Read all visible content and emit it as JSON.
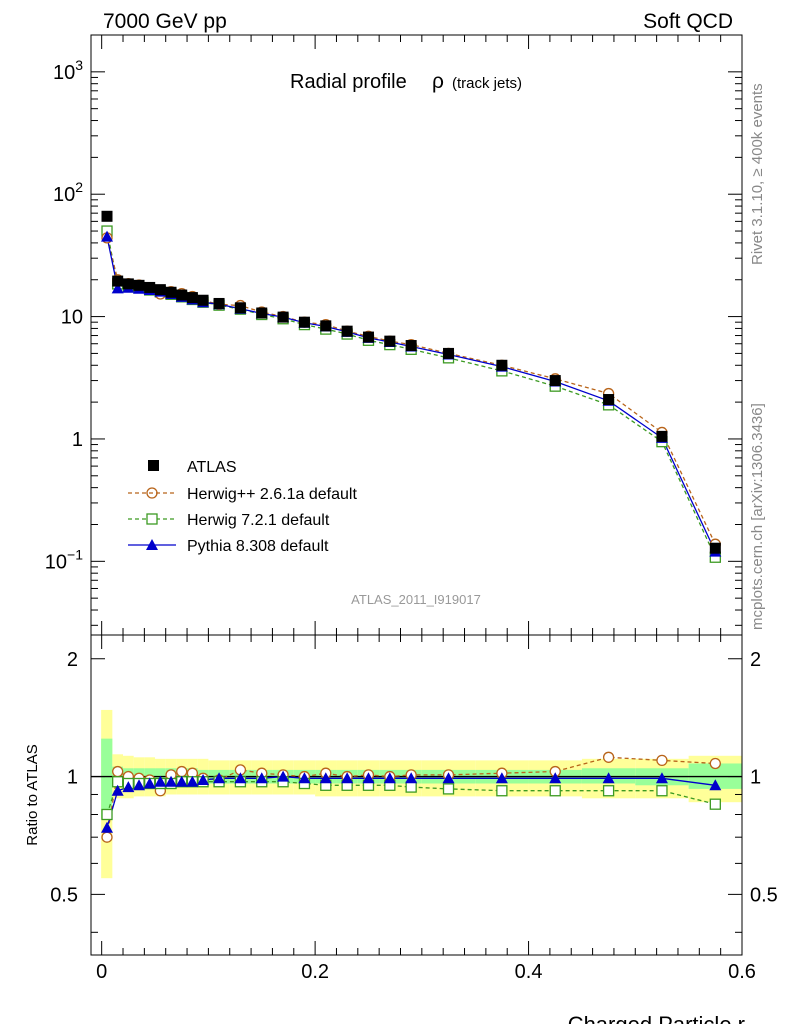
{
  "header": {
    "energy_label": "7000 GeV pp",
    "category_label": "Soft QCD",
    "right_label_top": "Rivet 3.1.10, ≥ 400k events",
    "right_label_bottom": "mcplots.cern.ch [arXiv:1306.3436]"
  },
  "chart_data": [
    {
      "type": "scatter",
      "panel": "main",
      "title_main": "Radial profile",
      "title_symbol": "ρ",
      "title_sub": "(track jets)",
      "watermark": "ATLAS_2011_I919017",
      "yscale": "log",
      "ylim": [
        0.025,
        2000
      ],
      "xlim": [
        -0.01,
        0.6
      ],
      "y_ticks": [
        {
          "value": 1000,
          "base": "10",
          "exp": "3"
        },
        {
          "value": 100,
          "base": "10",
          "exp": "2"
        },
        {
          "value": 10,
          "base": "10",
          "exp": ""
        },
        {
          "value": 1,
          "base": "1",
          "exp": ""
        },
        {
          "value": 0.1,
          "base": "10",
          "exp": "−1"
        }
      ],
      "x": [
        0.005,
        0.015,
        0.025,
        0.035,
        0.045,
        0.055,
        0.065,
        0.075,
        0.085,
        0.095,
        0.11,
        0.13,
        0.15,
        0.17,
        0.19,
        0.21,
        0.23,
        0.25,
        0.27,
        0.29,
        0.325,
        0.375,
        0.425,
        0.475,
        0.525,
        0.575
      ],
      "series": [
        {
          "name": "ATLAS",
          "key": "atlas",
          "color": "#000000",
          "marker": "filled-square",
          "values": [
            66,
            19.5,
            18.5,
            18.0,
            17.3,
            16.6,
            15.8,
            15.0,
            14.3,
            13.6,
            12.8,
            11.8,
            10.7,
            9.9,
            9.0,
            8.4,
            7.6,
            6.8,
            6.3,
            5.8,
            5.0,
            4.0,
            3.0,
            2.1,
            1.05,
            0.128
          ]
        },
        {
          "name": "Herwig++ 2.6.1a default",
          "key": "herwigpp",
          "color": "#b8641a",
          "marker": "open-circle",
          "values": [
            44,
            20.0,
            18.6,
            18.1,
            17.0,
            15.3,
            16.0,
            15.4,
            14.6,
            13.5,
            12.6,
            12.3,
            10.9,
            10.0,
            9.0,
            8.6,
            7.6,
            6.9,
            6.3,
            5.9,
            5.0,
            4.0,
            3.1,
            2.35,
            1.13,
            0.138
          ]
        },
        {
          "name": "Herwig 7.2.1 default",
          "key": "herwig7",
          "color": "#3c9a22",
          "marker": "open-square",
          "values": [
            50,
            18.5,
            17.7,
            17.2,
            16.5,
            15.9,
            15.2,
            14.5,
            13.8,
            13.1,
            12.4,
            11.5,
            10.4,
            9.6,
            8.6,
            7.9,
            7.2,
            6.4,
            5.9,
            5.4,
            4.6,
            3.6,
            2.7,
            1.9,
            0.95,
            0.108
          ]
        },
        {
          "name": "Pythia 8.308 default",
          "key": "pythia",
          "color": "#0000cc",
          "marker": "filled-triangle",
          "values": [
            45,
            17.0,
            17.2,
            16.9,
            16.5,
            16.0,
            15.3,
            14.5,
            13.8,
            13.1,
            12.6,
            11.6,
            10.6,
            9.9,
            8.9,
            8.3,
            7.5,
            6.7,
            6.2,
            5.7,
            4.9,
            3.9,
            2.95,
            2.05,
            1.02,
            0.12
          ]
        }
      ]
    },
    {
      "type": "scatter",
      "panel": "ratio",
      "ylabel": "Ratio to ATLAS",
      "xlabel": "Charged Particle r",
      "ylim": [
        0.35,
        2.3
      ],
      "xlim": [
        -0.01,
        0.6
      ],
      "y_ticks": [
        "0.5",
        "1",
        "2"
      ],
      "x_ticks": [
        "0",
        "0.2",
        "0.4",
        "0.6"
      ],
      "x_edges": [
        0.0,
        0.01,
        0.02,
        0.03,
        0.04,
        0.05,
        0.06,
        0.07,
        0.08,
        0.09,
        0.1,
        0.12,
        0.14,
        0.16,
        0.18,
        0.2,
        0.22,
        0.24,
        0.26,
        0.28,
        0.3,
        0.35,
        0.4,
        0.45,
        0.5,
        0.55,
        0.6
      ],
      "band_stat": [
        [
          0.78,
          1.25
        ],
        [
          0.95,
          1.06
        ],
        [
          0.95,
          1.05
        ],
        [
          0.95,
          1.05
        ],
        [
          0.95,
          1.05
        ],
        [
          0.95,
          1.05
        ],
        [
          0.95,
          1.05
        ],
        [
          0.95,
          1.05
        ],
        [
          0.96,
          1.05
        ],
        [
          0.96,
          1.04
        ],
        [
          0.96,
          1.04
        ],
        [
          0.96,
          1.04
        ],
        [
          0.96,
          1.04
        ],
        [
          0.96,
          1.04
        ],
        [
          0.96,
          1.04
        ],
        [
          0.96,
          1.04
        ],
        [
          0.96,
          1.04
        ],
        [
          0.96,
          1.04
        ],
        [
          0.96,
          1.04
        ],
        [
          0.96,
          1.04
        ],
        [
          0.96,
          1.04
        ],
        [
          0.96,
          1.04
        ],
        [
          0.96,
          1.04
        ],
        [
          0.96,
          1.05
        ],
        [
          0.95,
          1.05
        ],
        [
          0.93,
          1.08
        ]
      ],
      "band_total": [
        [
          0.55,
          1.48
        ],
        [
          0.88,
          1.14
        ],
        [
          0.88,
          1.13
        ],
        [
          0.89,
          1.12
        ],
        [
          0.89,
          1.12
        ],
        [
          0.89,
          1.11
        ],
        [
          0.9,
          1.11
        ],
        [
          0.9,
          1.11
        ],
        [
          0.9,
          1.11
        ],
        [
          0.9,
          1.11
        ],
        [
          0.9,
          1.1
        ],
        [
          0.9,
          1.1
        ],
        [
          0.9,
          1.1
        ],
        [
          0.9,
          1.1
        ],
        [
          0.9,
          1.1
        ],
        [
          0.89,
          1.1
        ],
        [
          0.89,
          1.1
        ],
        [
          0.89,
          1.1
        ],
        [
          0.89,
          1.1
        ],
        [
          0.89,
          1.1
        ],
        [
          0.89,
          1.1
        ],
        [
          0.89,
          1.1
        ],
        [
          0.89,
          1.1
        ],
        [
          0.88,
          1.11
        ],
        [
          0.88,
          1.11
        ],
        [
          0.86,
          1.13
        ]
      ],
      "x": [
        0.005,
        0.015,
        0.025,
        0.035,
        0.045,
        0.055,
        0.065,
        0.075,
        0.085,
        0.095,
        0.11,
        0.13,
        0.15,
        0.17,
        0.19,
        0.21,
        0.23,
        0.25,
        0.27,
        0.29,
        0.325,
        0.375,
        0.425,
        0.475,
        0.525,
        0.575
      ],
      "series": [
        {
          "name": "Herwig++ 2.6.1a default",
          "key": "herwigpp",
          "color": "#b8641a",
          "marker": "open-circle",
          "values": [
            0.7,
            1.03,
            1.0,
            0.99,
            0.98,
            0.92,
            1.01,
            1.03,
            1.02,
            0.99,
            0.98,
            1.04,
            1.02,
            1.01,
            1.0,
            1.02,
            1.0,
            1.01,
            1.0,
            1.01,
            1.01,
            1.02,
            1.03,
            1.12,
            1.1,
            1.08
          ]
        },
        {
          "name": "Herwig 7.2.1 default",
          "key": "herwig7",
          "color": "#3c9a22",
          "marker": "open-square",
          "values": [
            0.8,
            0.97,
            0.96,
            0.96,
            0.96,
            0.96,
            0.96,
            0.97,
            0.97,
            0.97,
            0.97,
            0.97,
            0.97,
            0.97,
            0.96,
            0.95,
            0.95,
            0.95,
            0.95,
            0.94,
            0.93,
            0.92,
            0.92,
            0.92,
            0.92,
            0.85
          ]
        },
        {
          "name": "Pythia 8.308 default",
          "key": "pythia",
          "color": "#0000cc",
          "marker": "filled-triangle",
          "values": [
            0.74,
            0.92,
            0.94,
            0.95,
            0.96,
            0.97,
            0.97,
            0.97,
            0.97,
            0.98,
            0.99,
            0.99,
            0.99,
            1.0,
            0.99,
            0.99,
            0.99,
            0.99,
            0.99,
            0.99,
            0.99,
            0.99,
            0.99,
            0.99,
            0.99,
            0.95
          ]
        }
      ]
    }
  ]
}
